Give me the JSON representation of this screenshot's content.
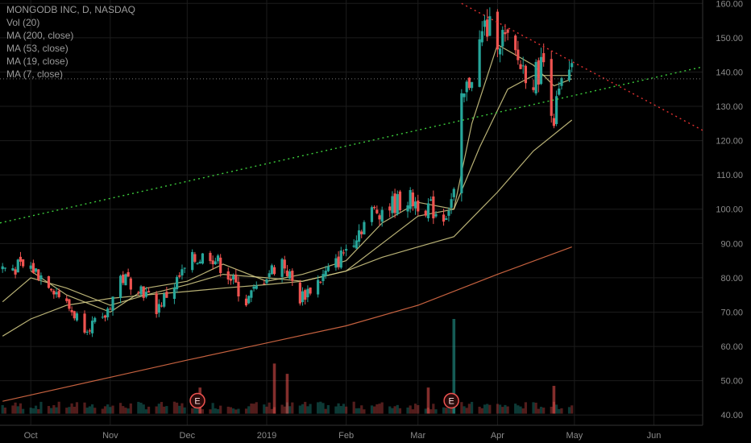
{
  "legend": {
    "title": "MONGODB INC, D, NASDAQ",
    "items": [
      "Vol (20)",
      "MA (200, close)",
      "MA (53, close)",
      "MA (19, close)",
      "MA (7, close)"
    ]
  },
  "earnings_marker_label": "E",
  "colors": {
    "background": "#000000",
    "grid": "#1c1c1c",
    "up": "#26a69a",
    "down": "#ef5350",
    "axis_text": "#8a8a8a",
    "ma200": "#e8724a",
    "ma_short": "#d8d08a",
    "trend_up": "#3ccc3c",
    "trend_down": "#e03030"
  },
  "chart_data": {
    "type": "candlestick",
    "title": "MONGODB INC, D, NASDAQ",
    "y_axis": {
      "ticks": [
        40,
        50,
        60,
        70,
        80,
        90,
        100,
        110,
        120,
        130,
        140,
        150,
        160
      ],
      "position": "right"
    },
    "x_axis": {
      "labels": [
        "Oct",
        "Nov",
        "Dec",
        "2019",
        "Feb",
        "Mar",
        "Apr",
        "May",
        "Jun"
      ],
      "dates": [
        "2018-10-01",
        "2018-11-01",
        "2018-12-01",
        "2019-01-01",
        "2019-02-01",
        "2019-03-01",
        "2019-04-01",
        "2019-05-01",
        "2019-06-01"
      ]
    },
    "date_range": [
      "2018-09-19",
      "2019-06-20"
    ],
    "price_range": [
      37,
      161
    ],
    "price_series": [
      {
        "date": "2018-09-20",
        "close": 83
      },
      {
        "date": "2018-10-01",
        "close": 83
      },
      {
        "date": "2018-10-08",
        "close": 79
      },
      {
        "date": "2018-10-15",
        "close": 72
      },
      {
        "date": "2018-10-22",
        "close": 66
      },
      {
        "date": "2018-10-29",
        "close": 67
      },
      {
        "date": "2018-11-05",
        "close": 80
      },
      {
        "date": "2018-11-12",
        "close": 78
      },
      {
        "date": "2018-11-19",
        "close": 71
      },
      {
        "date": "2018-11-26",
        "close": 78
      },
      {
        "date": "2018-12-03",
        "close": 85
      },
      {
        "date": "2018-12-10",
        "close": 87
      },
      {
        "date": "2018-12-17",
        "close": 81
      },
      {
        "date": "2018-12-24",
        "close": 73
      },
      {
        "date": "2019-01-01",
        "close": 81
      },
      {
        "date": "2019-01-07",
        "close": 85
      },
      {
        "date": "2019-01-14",
        "close": 74
      },
      {
        "date": "2019-01-21",
        "close": 79
      },
      {
        "date": "2019-01-28",
        "close": 84
      },
      {
        "date": "2019-02-04",
        "close": 92
      },
      {
        "date": "2019-02-11",
        "close": 99
      },
      {
        "date": "2019-02-18",
        "close": 101
      },
      {
        "date": "2019-02-25",
        "close": 103
      },
      {
        "date": "2019-03-04",
        "close": 101
      },
      {
        "date": "2019-03-11",
        "close": 98
      },
      {
        "date": "2019-03-15",
        "close": 104
      },
      {
        "date": "2019-03-18",
        "close": 130
      },
      {
        "date": "2019-03-22",
        "close": 140
      },
      {
        "date": "2019-03-27",
        "close": 153
      },
      {
        "date": "2019-04-03",
        "close": 150
      },
      {
        "date": "2019-04-10",
        "close": 142
      },
      {
        "date": "2019-04-15",
        "close": 138
      },
      {
        "date": "2019-04-19",
        "close": 143
      },
      {
        "date": "2019-04-23",
        "close": 127
      },
      {
        "date": "2019-04-26",
        "close": 136
      },
      {
        "date": "2019-04-30",
        "close": 139
      }
    ],
    "moving_averages": [
      {
        "name": "MA (7, close)",
        "points": [
          [
            "2018-10-01",
            82
          ],
          [
            "2018-10-15",
            75
          ],
          [
            "2018-11-01",
            70
          ],
          [
            "2018-11-15",
            77
          ],
          [
            "2018-12-01",
            79
          ],
          [
            "2018-12-15",
            84
          ],
          [
            "2019-01-01",
            79
          ],
          [
            "2019-01-15",
            81
          ],
          [
            "2019-02-01",
            85
          ],
          [
            "2019-02-15",
            96
          ],
          [
            "2019-03-01",
            102
          ],
          [
            "2019-03-15",
            100
          ],
          [
            "2019-03-22",
            125
          ],
          [
            "2019-04-01",
            148
          ],
          [
            "2019-04-15",
            142
          ],
          [
            "2019-04-23",
            136
          ],
          [
            "2019-04-30",
            138
          ]
        ]
      },
      {
        "name": "MA (19, close)",
        "points": [
          [
            "2018-09-20",
            73
          ],
          [
            "2018-10-01",
            80
          ],
          [
            "2018-10-15",
            77
          ],
          [
            "2018-11-01",
            72
          ],
          [
            "2018-11-15",
            75
          ],
          [
            "2018-12-01",
            78
          ],
          [
            "2018-12-15",
            81
          ],
          [
            "2019-01-01",
            80
          ],
          [
            "2019-01-15",
            79
          ],
          [
            "2019-02-01",
            82
          ],
          [
            "2019-02-15",
            90
          ],
          [
            "2019-03-01",
            98
          ],
          [
            "2019-03-15",
            100
          ],
          [
            "2019-03-25",
            118
          ],
          [
            "2019-04-05",
            135
          ],
          [
            "2019-04-15",
            139
          ],
          [
            "2019-04-30",
            139
          ]
        ]
      },
      {
        "name": "MA (53, close)",
        "points": [
          [
            "2018-09-20",
            63
          ],
          [
            "2018-10-01",
            68
          ],
          [
            "2018-10-15",
            72
          ],
          [
            "2018-11-01",
            74
          ],
          [
            "2018-11-15",
            75
          ],
          [
            "2018-12-01",
            76
          ],
          [
            "2018-12-15",
            77
          ],
          [
            "2019-01-01",
            78
          ],
          [
            "2019-01-15",
            79
          ],
          [
            "2019-02-01",
            82
          ],
          [
            "2019-02-15",
            86
          ],
          [
            "2019-03-01",
            89
          ],
          [
            "2019-03-15",
            92
          ],
          [
            "2019-04-01",
            105
          ],
          [
            "2019-04-15",
            117
          ],
          [
            "2019-04-30",
            126
          ]
        ]
      },
      {
        "name": "MA (200, close)",
        "points": [
          [
            "2018-09-20",
            44
          ],
          [
            "2018-11-01",
            51
          ],
          [
            "2018-12-01",
            56
          ],
          [
            "2019-01-01",
            61
          ],
          [
            "2019-02-01",
            66
          ],
          [
            "2019-03-01",
            72
          ],
          [
            "2019-04-01",
            81
          ],
          [
            "2019-04-30",
            89
          ]
        ]
      }
    ],
    "trendlines": [
      {
        "name": "support",
        "style": "dotted",
        "from": [
          "2018-09-19",
          96
        ],
        "to": [
          "2019-06-20",
          141.5
        ]
      },
      {
        "name": "resistance",
        "style": "dotted",
        "from": [
          "2019-03-18",
          160
        ],
        "to": [
          "2019-06-20",
          123
        ]
      }
    ],
    "horizontal_levels": [
      138
    ],
    "volume_spikes": [
      {
        "date": "2018-12-06",
        "level": 48
      },
      {
        "date": "2019-01-04",
        "level": 55
      },
      {
        "date": "2019-01-09",
        "level": 52
      },
      {
        "date": "2019-03-05",
        "level": 48
      },
      {
        "date": "2019-03-15",
        "level": 68
      },
      {
        "date": "2019-04-23",
        "level": 48.5
      }
    ],
    "earnings": [
      "2018-12-05",
      "2019-03-14"
    ]
  }
}
